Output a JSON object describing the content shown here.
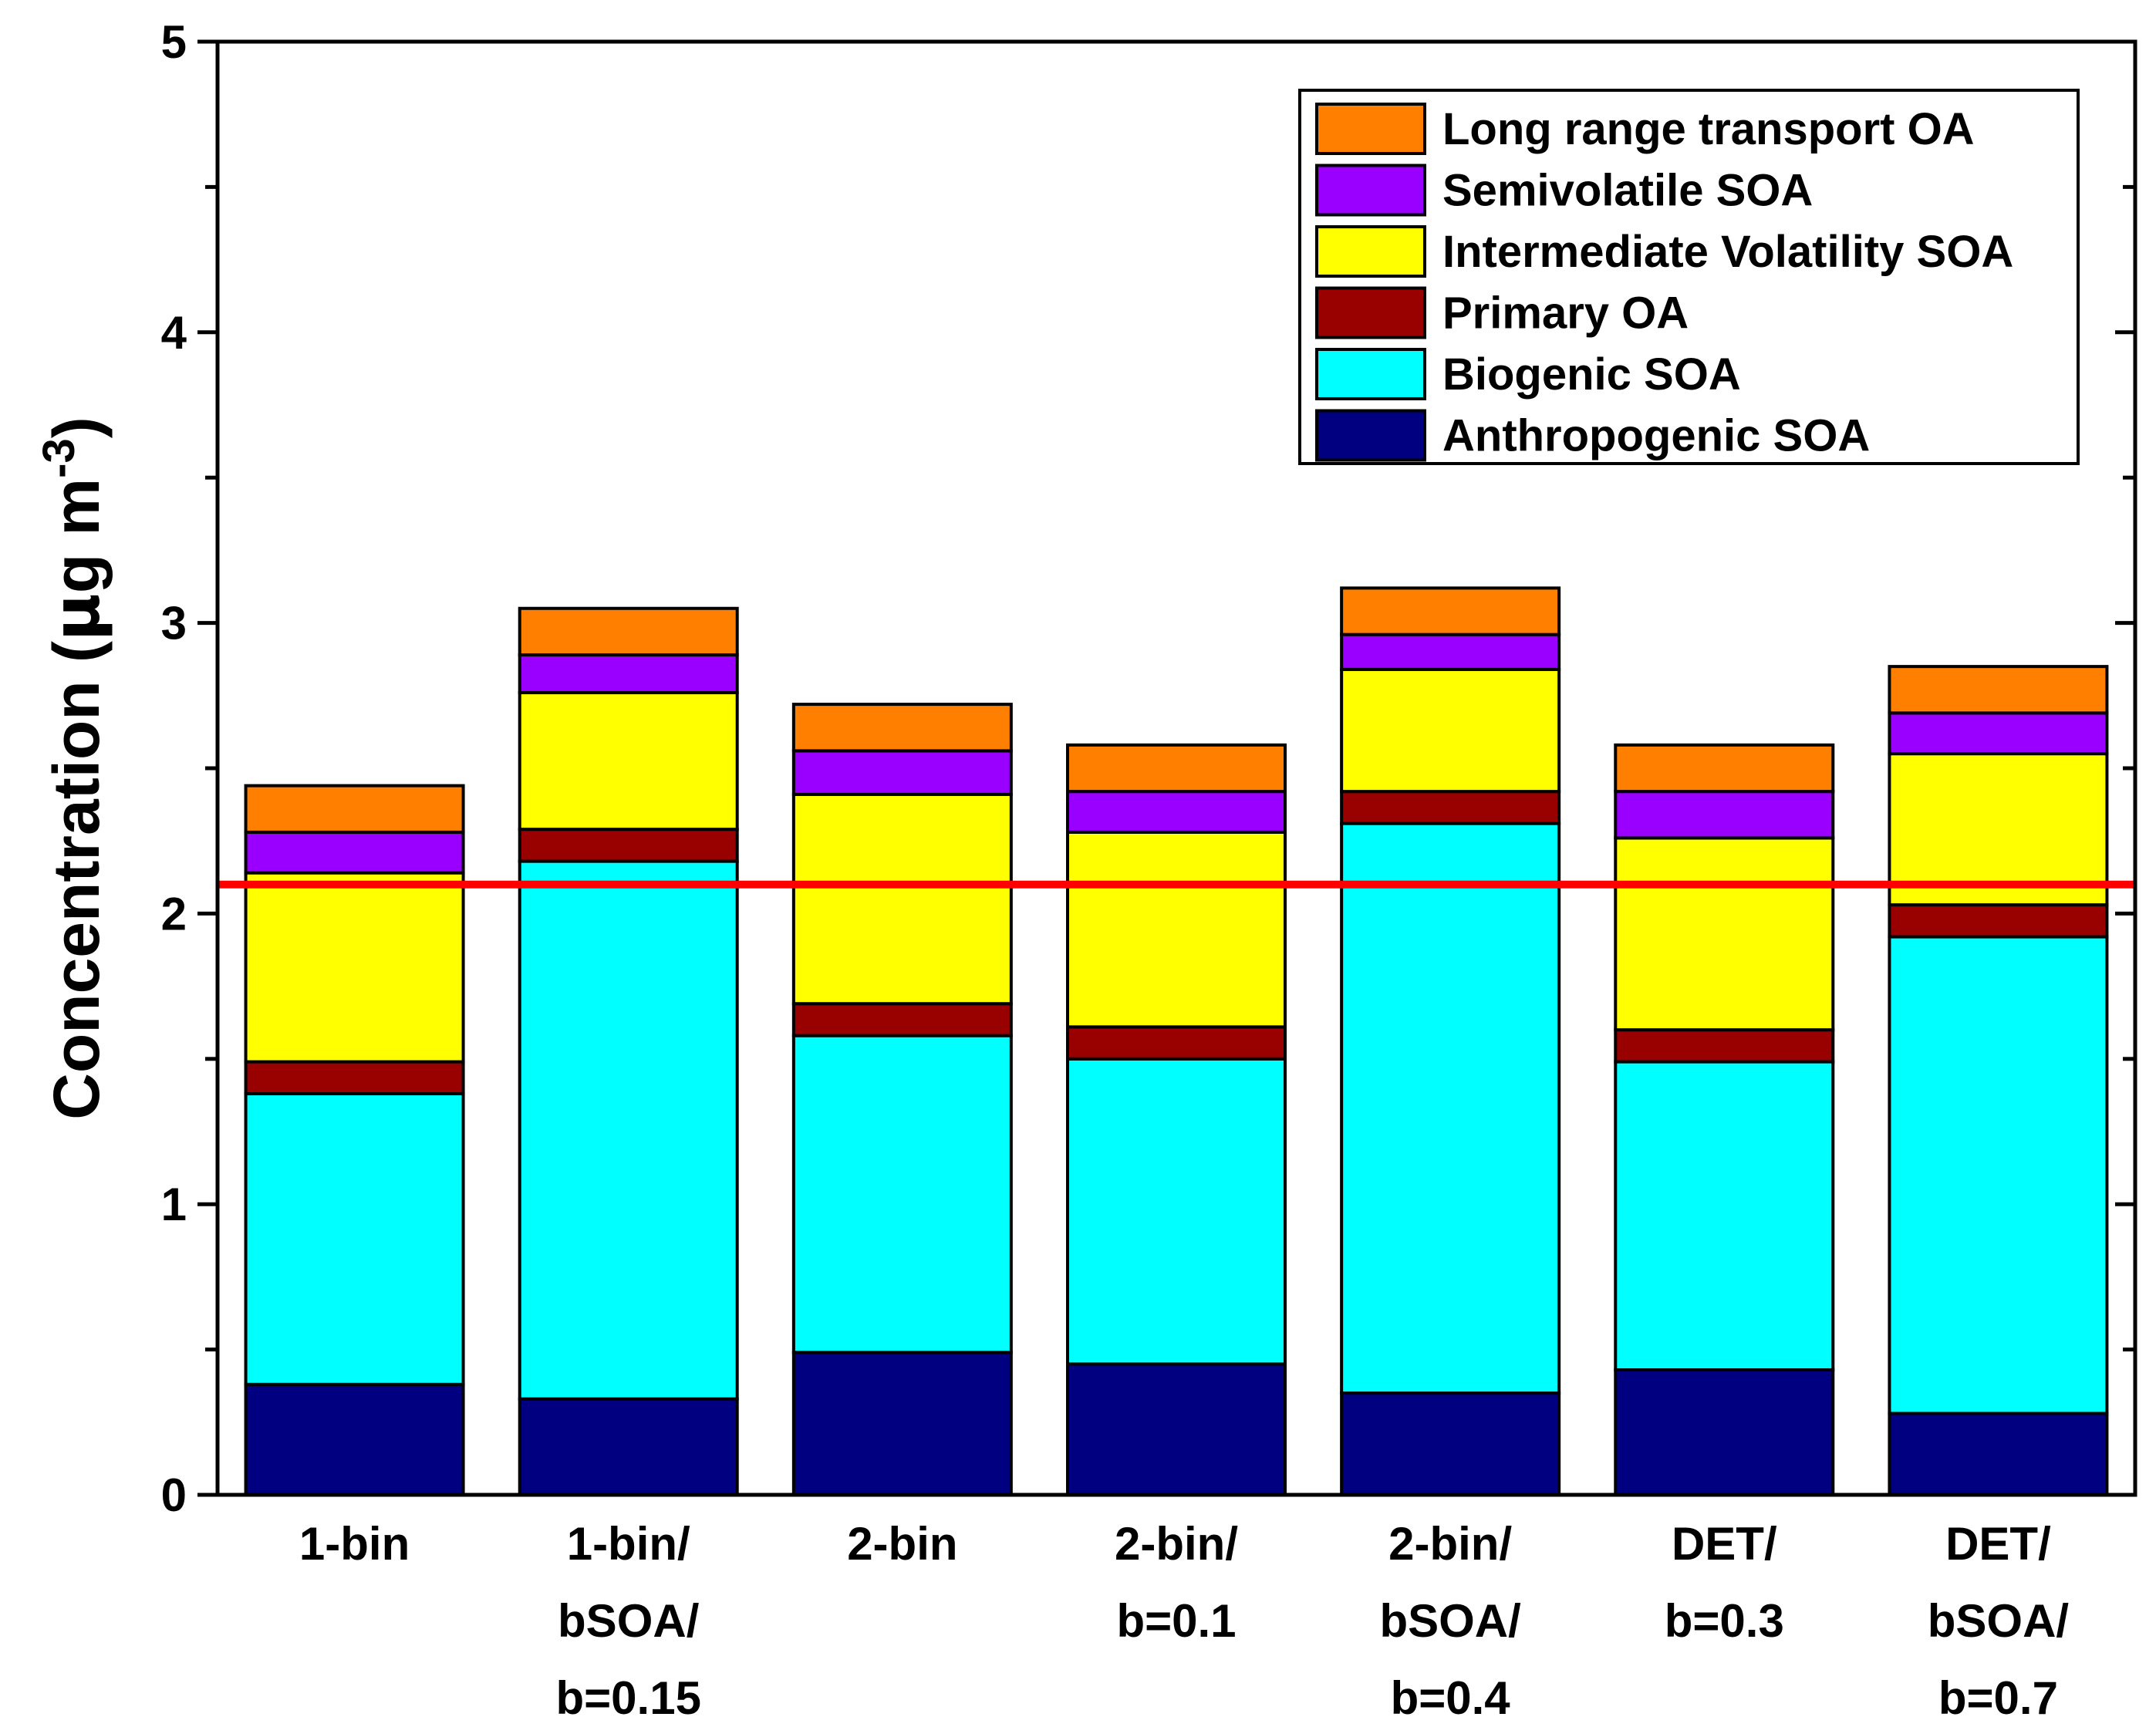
{
  "chart_data": {
    "type": "bar",
    "stacked": true,
    "title": "",
    "xlabel": "",
    "ylabel_main": "Concentration (",
    "ylabel_mu": "μ",
    "ylabel_unit": "g m",
    "ylabel_exp": "-3",
    "ylabel_close": ")",
    "ylim": [
      0,
      5
    ],
    "yticks": [
      "0",
      "1",
      "2",
      "3",
      "4",
      "5"
    ],
    "categories": [
      [
        "1-bin"
      ],
      [
        "1-bin/",
        "bSOA/",
        "b=0.15"
      ],
      [
        "2-bin"
      ],
      [
        "2-bin/",
        "b=0.1"
      ],
      [
        "2-bin/",
        "bSOA/",
        "b=0.4"
      ],
      [
        "DET/",
        "b=0.3"
      ],
      [
        "DET/",
        "bSOA/",
        "b=0.7"
      ]
    ],
    "series": [
      {
        "name": "Anthropogenic SOA",
        "color": "#000080",
        "values": [
          0.38,
          0.33,
          0.49,
          0.45,
          0.35,
          0.43,
          0.28
        ]
      },
      {
        "name": "Biogenic SOA",
        "color": "#00FFFF",
        "values": [
          1.0,
          1.85,
          1.09,
          1.05,
          1.96,
          1.06,
          1.64
        ]
      },
      {
        "name": "Primary OA",
        "color": "#990000",
        "values": [
          0.11,
          0.11,
          0.11,
          0.11,
          0.11,
          0.11,
          0.11
        ]
      },
      {
        "name": "Intermediate Volatility SOA",
        "color": "#FFFF00",
        "values": [
          0.65,
          0.47,
          0.72,
          0.67,
          0.42,
          0.66,
          0.52
        ]
      },
      {
        "name": "Semivolatile SOA",
        "color": "#9900FF",
        "values": [
          0.14,
          0.13,
          0.15,
          0.14,
          0.12,
          0.16,
          0.14
        ]
      },
      {
        "name": "Long range transport OA",
        "color": "#FF8000",
        "values": [
          0.16,
          0.16,
          0.16,
          0.16,
          0.16,
          0.16,
          0.16
        ]
      }
    ],
    "reference_line": {
      "y": 2.1,
      "color": "#FF0000"
    },
    "legend_position": "top-right"
  }
}
